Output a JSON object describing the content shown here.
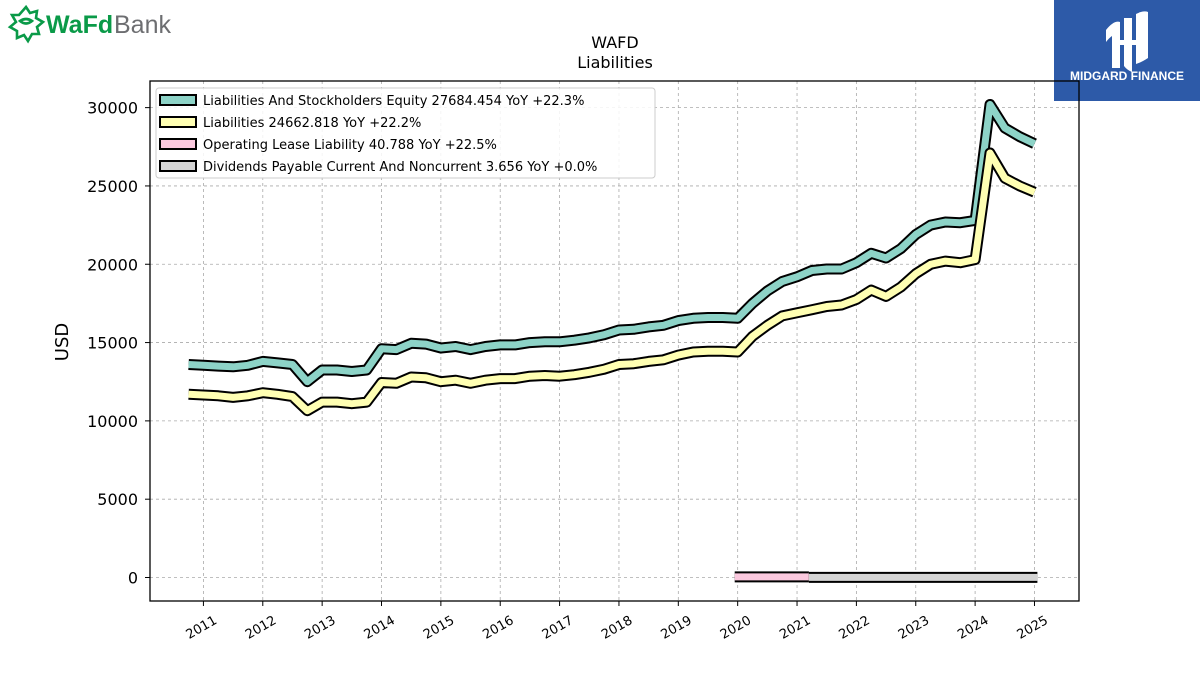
{
  "brand": {
    "left_logo_word1": "WaFd",
    "left_logo_word2": "Bank",
    "left_logo_color": "#0a9a48",
    "left_logo_gray": "#6d6e71",
    "right_logo_text": "MIDGARD FINANCE",
    "right_logo_bg": "#2d5aa8"
  },
  "chart_data": {
    "type": "line",
    "title": "WAFD",
    "subtitle": "Liabilities",
    "ylabel": "USD",
    "xlabel": "",
    "xlim": [
      2010.1,
      2025.75
    ],
    "ylim": [
      -1500,
      31700
    ],
    "yticks": [
      0,
      5000,
      10000,
      15000,
      20000,
      25000,
      30000
    ],
    "xticks": [
      "2011",
      "2012",
      "2013",
      "2014",
      "2015",
      "2016",
      "2017",
      "2018",
      "2019",
      "2020",
      "2021",
      "2022",
      "2023",
      "2024",
      "2025"
    ],
    "grid": true,
    "legend_position": "top-left",
    "series": [
      {
        "name": "Liabilities And Stockholders Equity",
        "legend": "Liabilities And Stockholders Equity  27684.454 YoY +22.3%",
        "color": "#8dd3c7",
        "x": [
          2010.75,
          2011.0,
          2011.25,
          2011.5,
          2011.75,
          2012.0,
          2012.25,
          2012.5,
          2012.75,
          2013.0,
          2013.25,
          2013.5,
          2013.75,
          2014.0,
          2014.25,
          2014.5,
          2014.75,
          2015.0,
          2015.25,
          2015.5,
          2015.75,
          2016.0,
          2016.25,
          2016.5,
          2016.75,
          2017.0,
          2017.25,
          2017.5,
          2017.75,
          2018.0,
          2018.25,
          2018.5,
          2018.75,
          2019.0,
          2019.25,
          2019.5,
          2019.75,
          2020.0,
          2020.25,
          2020.5,
          2020.75,
          2021.0,
          2021.25,
          2021.5,
          2021.75,
          2022.0,
          2022.25,
          2022.5,
          2022.75,
          2023.0,
          2023.25,
          2023.5,
          2023.75,
          2024.0,
          2024.25,
          2024.5,
          2024.75,
          2025.0
        ],
        "values": [
          13600,
          13550,
          13500,
          13450,
          13550,
          13800,
          13700,
          13600,
          12500,
          13250,
          13250,
          13150,
          13250,
          14600,
          14550,
          14950,
          14900,
          14650,
          14750,
          14550,
          14750,
          14850,
          14850,
          15000,
          15050,
          15050,
          15150,
          15300,
          15500,
          15800,
          15850,
          16000,
          16100,
          16400,
          16550,
          16600,
          16600,
          16550,
          17500,
          18300,
          18900,
          19200,
          19600,
          19700,
          19700,
          20100,
          20700,
          20400,
          21000,
          21900,
          22500,
          22700,
          22650,
          22800,
          30200,
          28700,
          28150,
          27700
        ]
      },
      {
        "name": "Liabilities",
        "legend": "Liabilities  24662.818 YoY +22.2%",
        "color": "#ffffb3",
        "x": [
          2010.75,
          2011.0,
          2011.25,
          2011.5,
          2011.75,
          2012.0,
          2012.25,
          2012.5,
          2012.75,
          2013.0,
          2013.25,
          2013.5,
          2013.75,
          2014.0,
          2014.25,
          2014.5,
          2014.75,
          2015.0,
          2015.25,
          2015.5,
          2015.75,
          2016.0,
          2016.25,
          2016.5,
          2016.75,
          2017.0,
          2017.25,
          2017.5,
          2017.75,
          2018.0,
          2018.25,
          2018.5,
          2018.75,
          2019.0,
          2019.25,
          2019.5,
          2019.75,
          2020.0,
          2020.25,
          2020.5,
          2020.75,
          2021.0,
          2021.25,
          2021.5,
          2021.75,
          2022.0,
          2022.25,
          2022.5,
          2022.75,
          2023.0,
          2023.25,
          2023.5,
          2023.75,
          2024.0,
          2024.25,
          2024.5,
          2024.75,
          2025.0
        ],
        "values": [
          11700,
          11650,
          11600,
          11500,
          11600,
          11800,
          11700,
          11550,
          10650,
          11200,
          11200,
          11100,
          11200,
          12450,
          12400,
          12800,
          12750,
          12500,
          12600,
          12400,
          12600,
          12700,
          12700,
          12850,
          12900,
          12850,
          12950,
          13100,
          13300,
          13600,
          13650,
          13800,
          13900,
          14200,
          14400,
          14450,
          14450,
          14400,
          15400,
          16100,
          16700,
          16900,
          17100,
          17300,
          17400,
          17750,
          18350,
          17950,
          18550,
          19400,
          20000,
          20200,
          20100,
          20300,
          27100,
          25500,
          25000,
          24600
        ]
      },
      {
        "name": "Operating Lease Liability",
        "legend": "Operating Lease Liability  40.788 YoY +22.5%",
        "color": "#fbc8de",
        "x": [
          2019.95,
          2020.25,
          2020.5,
          2020.75,
          2021.0,
          2021.2
        ],
        "values": [
          40,
          40,
          40,
          40,
          40,
          40
        ]
      },
      {
        "name": "Dividends Payable Current And Noncurrent",
        "legend": "Dividends Payable Current And Noncurrent  3.656 YoY +0.0%",
        "color": "#d4d4d4",
        "x": [
          2021.2,
          2021.5,
          2022.0,
          2022.5,
          2023.0,
          2023.5,
          2024.0,
          2024.5,
          2025.05
        ],
        "values": [
          4,
          4,
          4,
          4,
          4,
          4,
          4,
          4,
          4
        ]
      }
    ]
  }
}
